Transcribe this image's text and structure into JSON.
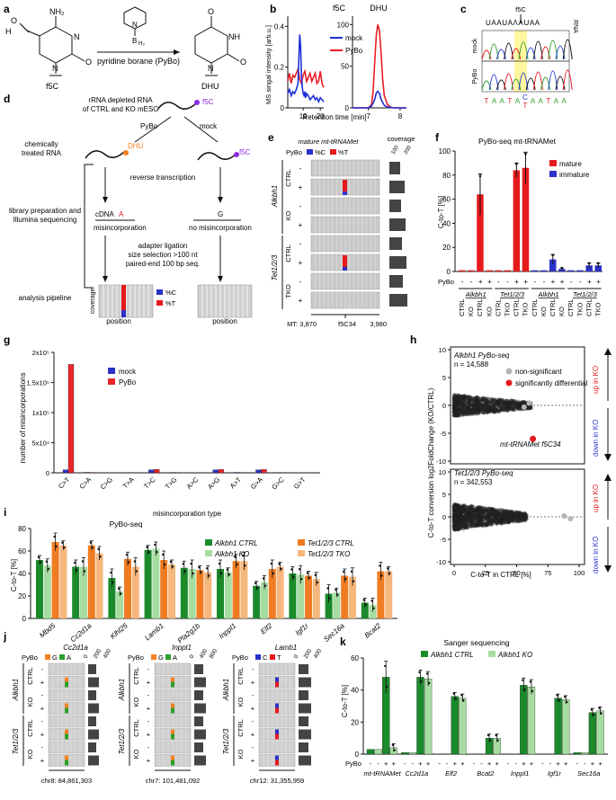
{
  "panels": {
    "a": {
      "label": "a",
      "reagent": "pyridine borane (PyBo)",
      "left_compound": "f5C",
      "right_compound": "DHU",
      "atoms": {
        "nh2": "NH₂",
        "h": "H",
        "o": "O",
        "n": "N",
        "nh": "NH",
        "b": "B",
        "h3": "H₃"
      }
    },
    "b": {
      "label": "b",
      "ylabel": "MS singal intensity [arb.u.]",
      "xlabel": "Retention time [min]",
      "legend": [
        "mock",
        "PyBo"
      ]
    },
    "c": {
      "label": "c",
      "top_marker": "f5C",
      "rna_label": "RNA",
      "rna_seq": "UAAUAɅAUAA",
      "rows": [
        "mock",
        "PyBo"
      ],
      "bottom_seq": [
        "T",
        "A",
        "A",
        "T",
        "A",
        "C/T",
        "A",
        "A",
        "T",
        "A",
        "A"
      ]
    },
    "d": {
      "label": "d",
      "title_lines": [
        "rRNA depleted RNA",
        "of CTRL and KO mESC"
      ],
      "f5c": "f5C",
      "pybo": "PyBo",
      "mock": "mock",
      "dhu": "DHU",
      "step_chem": "chemically",
      "step_chem2": "treated RNA",
      "rt": "reverse transcription",
      "lib1": "library preparation and",
      "lib2": "Illumina sequencing",
      "cdna": "cDNA",
      "a_letter": "A",
      "g_letter": "G",
      "misinc": "misincorporation",
      "no_misinc": "no misincorporation",
      "adapter": [
        "adapter ligation",
        "size selection >100 nt",
        "paired-end 100 bp seq."
      ],
      "analysis": "analysis pipeline",
      "coverage": "coverage",
      "position": "position",
      "leg_c": "%C",
      "leg_t": "%T"
    },
    "e": {
      "label": "e",
      "title": "mature mt-tRNAMet",
      "pybo": "PyBo",
      "leg_c": "%C",
      "leg_t": "%T",
      "coverage": "coverage",
      "cov_ticks": [
        "100",
        "200"
      ],
      "groups": [
        "Alkbh1",
        "Tet1/2/3"
      ],
      "subgroups": [
        "CTRL",
        "KO",
        "CTRL",
        "TKO"
      ],
      "signs": [
        "-",
        "+",
        "-",
        "+",
        "-",
        "+",
        "-",
        "+"
      ],
      "x_ticks": [
        "MT: 3,870",
        "f5C34",
        "3,980"
      ]
    },
    "f": {
      "label": "f",
      "title": "PyBo-seq mt-tRNAMet",
      "ylabel": "C-to-T [%]",
      "legend": [
        "mature",
        "immature"
      ],
      "pybo_row": [
        "-",
        "-",
        "+",
        "+",
        "-",
        "-",
        "+",
        "+",
        "-",
        "-",
        "+",
        "+",
        "-",
        "-",
        "+",
        "+"
      ],
      "groups": [
        "Alkbh1",
        "Tet1/2/3",
        "Alkbh1",
        "Tet1/2/3"
      ],
      "cond": [
        "CTRL",
        "KO",
        "CTRL",
        "KO",
        "CTRL",
        "TKO",
        "CTRL",
        "TKO",
        "CTRL",
        "KO",
        "CTRL",
        "KO",
        "CTRL",
        "TKO",
        "CTRL",
        "TKO"
      ]
    },
    "g": {
      "label": "g",
      "ylabel": "number of misincorporations",
      "xlabel": "misincorporation type",
      "legend": [
        "mock",
        "PyBo"
      ],
      "yticks": [
        "0",
        "5x10⁴",
        "1x10⁵",
        "1.5x10⁵",
        "2x10⁵"
      ]
    },
    "h": {
      "label": "h",
      "top_title": "Alkbh1 PyBo-seq",
      "top_n": "n = 14,588",
      "bottom_title": "Tet1/2/3 PyBo-seq",
      "bottom_n": "n = 342,553",
      "legend": [
        "non-significant",
        "significantly differential"
      ],
      "annotation": "mt-tRNAMet f5C34",
      "ylabel": "C-to-T conversion log2FoldChange (KO/CTRL)",
      "xlabel": "C-to-T in CTRL [%]",
      "up": "up in KO",
      "down": "down in KO"
    },
    "i": {
      "label": "i",
      "title": "PyBo-seq",
      "ylabel": "C-to-T [%]",
      "legend": [
        "Alkbh1 CTRL",
        "Alkbh1 KO",
        "Tet1/2/3 CTRL",
        "Tet1/2/3 TKO"
      ]
    },
    "j": {
      "label": "j",
      "pybo": "PyBo",
      "sub1": {
        "gene": "Cc2d1a",
        "leg": [
          "G",
          "A"
        ],
        "coord": "chr8: 84,861,303",
        "cov": [
          "0",
          "200",
          "400"
        ]
      },
      "sub2": {
        "gene": "Inppl1",
        "leg": [
          "G",
          "A"
        ],
        "coord": "chr7: 101,481,092",
        "cov": [
          "0",
          "400",
          "800"
        ]
      },
      "sub3": {
        "gene": "Lamb1",
        "leg": [
          "C",
          "T"
        ],
        "coord": "chr12: 31,355,959",
        "cov": [
          "0",
          "200",
          "400"
        ]
      },
      "groups": [
        "Alkbh1",
        "Tet1/2/3"
      ],
      "sub_labels": [
        "CTRL",
        "KO",
        "CTRL",
        "KO"
      ],
      "signs": [
        "-",
        "+",
        "-",
        "+",
        "-",
        "+",
        "-",
        "+"
      ]
    },
    "k": {
      "label": "k",
      "title": "Sanger sequencing",
      "ylabel": "C-to-T [%]",
      "legend": [
        "Alkbh1 CTRL",
        "Alkbh1 KO"
      ],
      "pybo_label": "PyBo"
    }
  },
  "chart_data": [
    {
      "id": "b-f5C",
      "type": "line",
      "title": "f5C",
      "xlabel": "Retention time [min]",
      "ylabel": "MS singal intensity [arb.u.]",
      "xlim": [
        18.1,
        20.2
      ],
      "ylim": [
        0,
        0.45
      ],
      "xticks": [
        19,
        20
      ],
      "yticks": [
        0,
        0.2,
        0.4
      ],
      "series": [
        {
          "name": "mock",
          "color": "#1d2fd6",
          "x": [
            18.1,
            18.2,
            18.3,
            18.4,
            18.5,
            18.6,
            18.7,
            18.75,
            18.8,
            18.85,
            18.9,
            18.95,
            19.0,
            19.05,
            19.1,
            19.15,
            19.2,
            19.3,
            19.4,
            19.5,
            19.6,
            19.7,
            19.8,
            19.9,
            20.0,
            20.1,
            20.2
          ],
          "y": [
            0.07,
            0.09,
            0.06,
            0.08,
            0.07,
            0.09,
            0.12,
            0.25,
            0.36,
            0.3,
            0.16,
            0.1,
            0.07,
            0.06,
            0.08,
            0.05,
            0.07,
            0.06,
            0.04,
            0.05,
            0.06,
            0.04,
            0.05,
            0.03,
            0.05,
            0.04,
            0.03
          ]
        },
        {
          "name": "PyBo",
          "color": "#ea1c24",
          "x": [
            18.1,
            18.2,
            18.3,
            18.4,
            18.5,
            18.6,
            18.7,
            18.8,
            18.9,
            19.0,
            19.1,
            19.2,
            19.3,
            19.4,
            19.5,
            19.6,
            19.7,
            19.8,
            19.9,
            20.0,
            20.1,
            20.2
          ],
          "y": [
            0.13,
            0.17,
            0.12,
            0.16,
            0.15,
            0.17,
            0.19,
            0.14,
            0.12,
            0.16,
            0.18,
            0.13,
            0.15,
            0.17,
            0.13,
            0.15,
            0.17,
            0.12,
            0.13,
            0.18,
            0.12,
            0.1
          ]
        }
      ]
    },
    {
      "id": "b-DHU",
      "type": "line",
      "title": "DHU",
      "xlabel": "Retention time [min]",
      "ylabel": "",
      "xlim": [
        6.5,
        8.2
      ],
      "ylim": [
        0,
        110
      ],
      "xticks": [
        7,
        8
      ],
      "yticks": [
        0,
        50,
        100
      ],
      "series": [
        {
          "name": "mock",
          "color": "#1d2fd6",
          "x": [
            6.5,
            6.8,
            7.0,
            7.1,
            7.2,
            7.25,
            7.3,
            7.35,
            7.4,
            7.5,
            7.6,
            7.8,
            8.0,
            8.2
          ],
          "y": [
            0,
            0,
            0,
            2,
            10,
            18,
            20,
            17,
            10,
            3,
            1,
            0,
            0,
            0
          ]
        },
        {
          "name": "PyBo",
          "color": "#ea1c24",
          "x": [
            6.5,
            6.8,
            7.0,
            7.1,
            7.15,
            7.2,
            7.25,
            7.3,
            7.35,
            7.4,
            7.45,
            7.5,
            7.6,
            7.7,
            7.8,
            8.0,
            8.2
          ],
          "y": [
            0,
            0,
            0,
            4,
            20,
            55,
            88,
            100,
            92,
            65,
            35,
            15,
            4,
            1,
            0,
            0,
            0
          ]
        }
      ]
    },
    {
      "id": "f",
      "type": "bar",
      "title": "PyBo-seq mt-tRNAMet",
      "ylabel": "C-to-T [%]",
      "ylim": [
        0,
        100
      ],
      "yticks": [
        0,
        20,
        40,
        60,
        80,
        100
      ],
      "series": [
        {
          "name": "mature",
          "color": "#e41a1c",
          "values": [
            1,
            1,
            64,
            1,
            1,
            1,
            84,
            86
          ],
          "err": [
            0,
            0,
            17,
            0,
            0,
            0,
            6,
            13
          ]
        },
        {
          "name": "immature",
          "color": "#2b32c8",
          "values": [
            1,
            1,
            10,
            2,
            1,
            1,
            5,
            5
          ],
          "err": [
            0,
            0,
            4,
            1,
            0,
            0,
            2,
            2
          ]
        }
      ]
    },
    {
      "id": "g",
      "type": "bar",
      "ylabel": "number of misincorporations",
      "xlabel": "misincorporation type",
      "categories": [
        "C>T",
        "C>A",
        "C>G",
        "T>A",
        "T>C",
        "T>G",
        "A>C",
        "A>G",
        "A>T",
        "G>A",
        "G>C",
        "G>T"
      ],
      "ylim": [
        0,
        200000
      ],
      "series": [
        {
          "name": "mock",
          "color": "#2b32c8",
          "values": [
            5000,
            800,
            500,
            600,
            5000,
            700,
            500,
            5000,
            800,
            5000,
            600,
            500
          ]
        },
        {
          "name": "PyBo",
          "color": "#e8262b",
          "values": [
            180000,
            700,
            500,
            500,
            5800,
            600,
            400,
            5500,
            600,
            5500,
            500,
            400
          ]
        }
      ]
    },
    {
      "id": "h-top",
      "type": "scatter",
      "title": "Alkbh1 PyBo-seq",
      "xlim": [
        0,
        100
      ],
      "ylim": [
        -10,
        10
      ],
      "yticks": [
        -10,
        -5,
        0,
        5,
        10
      ],
      "xticks": [
        0,
        25,
        50,
        75,
        100
      ],
      "highlight": {
        "label": "mt-tRNAMet f5C34",
        "x": 63,
        "y": -6
      }
    },
    {
      "id": "h-bottom",
      "type": "scatter",
      "title": "Tet1/2/3 PyBo-seq",
      "xlim": [
        0,
        100
      ],
      "ylim": [
        -10,
        10
      ],
      "yticks": [
        -10,
        -5,
        0,
        5,
        10
      ],
      "xticks": [
        0,
        25,
        50,
        75,
        100
      ]
    },
    {
      "id": "i",
      "type": "bar",
      "title": "PyBo-seq",
      "ylabel": "C-to-T [%]",
      "ylim": [
        0,
        80
      ],
      "yticks": [
        0,
        20,
        40,
        60,
        80
      ],
      "categories": [
        "Mbd5",
        "Cc2d1a",
        "Klhl25",
        "Lamb1",
        "Pla2g1b",
        "Inppl1",
        "Elf2",
        "Igf1r",
        "Sec16a",
        "Bcat2"
      ],
      "series": [
        {
          "name": "Alkbh1 CTRL",
          "color": "#1a8a2a",
          "values": [
            52,
            46,
            36,
            61,
            45,
            44,
            29,
            40,
            22,
            14
          ]
        },
        {
          "name": "Alkbh1 KO",
          "color": "#a6dca0",
          "values": [
            47,
            46,
            24,
            62,
            44,
            41,
            32,
            39,
            23,
            12
          ]
        },
        {
          "name": "Tet1/2/3 CTRL",
          "color": "#f07c22",
          "values": [
            68,
            65,
            53,
            52,
            43,
            51,
            44,
            38,
            38,
            42
          ]
        },
        {
          "name": "Tet1/2/3 TKO",
          "color": "#f6b77c",
          "values": [
            65,
            58,
            46,
            48,
            41,
            51,
            46,
            35,
            37,
            42
          ]
        }
      ]
    },
    {
      "id": "k",
      "type": "bar",
      "title": "Sanger sequencing",
      "ylabel": "C-to-T [%]",
      "ylim": [
        0,
        60
      ],
      "yticks": [
        0,
        20,
        40,
        60
      ],
      "categories": [
        "mt-tRNAMet",
        "Cc2d1a",
        "Elf2",
        "Bcat2",
        "Inppl1",
        "Igf1r",
        "Sec16a"
      ],
      "pybo_pairs": [
        "-",
        "+"
      ],
      "series": [
        {
          "name": "Alkbh1 CTRL -",
          "color": "#1a8a2a",
          "values": [
            3,
            1,
            0,
            0,
            0,
            0,
            1
          ]
        },
        {
          "name": "Alkbh1 KO -",
          "color": "#a6dca0",
          "values": [
            3,
            1,
            0,
            0,
            0,
            0,
            1
          ]
        },
        {
          "name": "Alkbh1 CTRL +",
          "color": "#1a8a2a",
          "values": [
            48,
            48,
            36,
            10,
            43,
            35,
            26
          ]
        },
        {
          "name": "Alkbh1 KO +",
          "color": "#a6dca0",
          "values": [
            4,
            47,
            35,
            10,
            42,
            34,
            27
          ]
        }
      ]
    }
  ]
}
